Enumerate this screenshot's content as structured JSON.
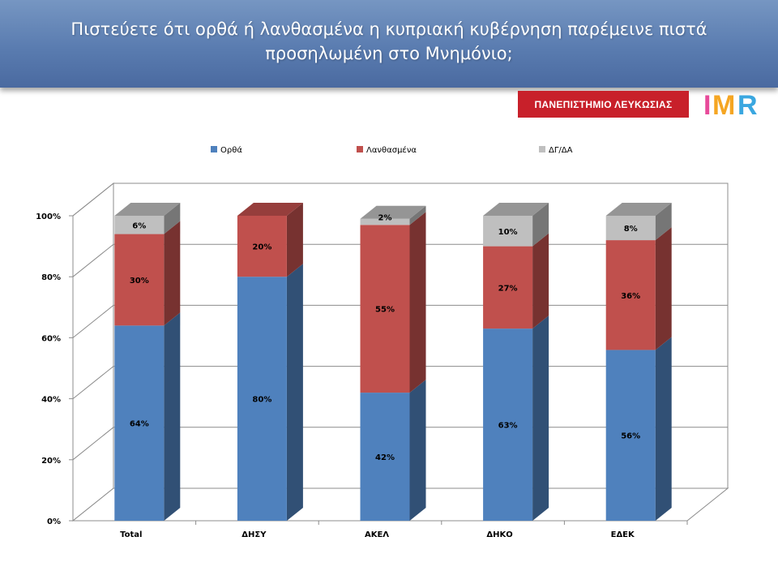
{
  "header": {
    "title": "Πιστεύετε ότι ορθά ή λανθασμένα η κυπριακή κυβέρνηση παρέμεινε πιστά προσηλωμένη στο Μνημόνιο;"
  },
  "logos": {
    "university": "ΠΑΝΕΠΙΣΤΗΜΙΟ ΛΕΥΚΩΣΙΑΣ",
    "imr": "IMR"
  },
  "colors": {
    "header": "#5a7cb0",
    "university_red": "#c8202a",
    "series": [
      "#4f81bd",
      "#c0504d",
      "#bfbfbf"
    ]
  },
  "chart_data": {
    "type": "bar",
    "stacked": true,
    "three_d": true,
    "categories": [
      "Total",
      "ΔΗΣΥ",
      "ΑΚΕΛ",
      "ΔΗΚΟ",
      "ΕΔΕΚ"
    ],
    "series": [
      {
        "name": "Ορθά",
        "values": [
          64,
          80,
          42,
          63,
          56
        ],
        "labels": [
          "64%",
          "80%",
          "42%",
          "63%",
          "56%"
        ],
        "color": "#4f81bd"
      },
      {
        "name": "Λανθασμένα",
        "values": [
          30,
          20,
          55,
          27,
          36
        ],
        "labels": [
          "30%",
          "20%",
          "55%",
          "27%",
          "36%"
        ],
        "color": "#c0504d"
      },
      {
        "name": "ΔΓ/ΔΑ",
        "values": [
          6,
          0,
          2,
          10,
          8
        ],
        "labels": [
          "6%",
          "",
          "2%",
          "10%",
          "8%"
        ],
        "color": "#bfbfbf"
      }
    ],
    "yticks": [
      "0%",
      "20%",
      "40%",
      "60%",
      "80%",
      "100%"
    ],
    "ylim": [
      0,
      100
    ],
    "grid": true,
    "legend": "top"
  }
}
